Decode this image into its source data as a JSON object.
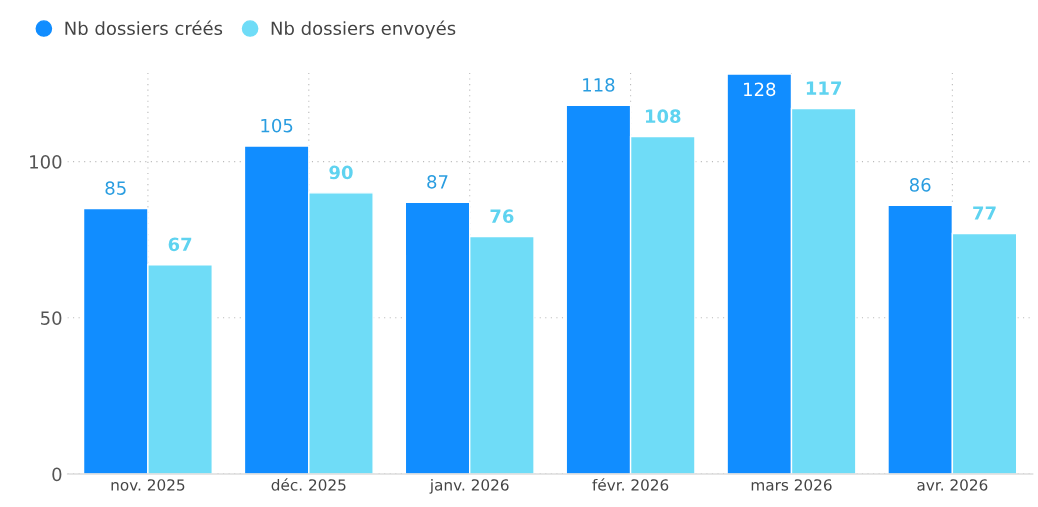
{
  "chart_data": {
    "type": "bar",
    "categories": [
      "nov. 2025",
      "déc. 2025",
      "janv. 2026",
      "févr. 2026",
      "mars 2026",
      "avr. 2026"
    ],
    "series": [
      {
        "name": "Nb dossiers créés",
        "color": "#118dff",
        "values": [
          85,
          105,
          87,
          118,
          128,
          86
        ]
      },
      {
        "name": "Nb dossiers envoyés",
        "color": "#6fdcf7",
        "values": [
          67,
          90,
          76,
          108,
          117,
          77
        ]
      }
    ],
    "ylim": [
      0,
      129
    ],
    "yticks": [
      0,
      50,
      100
    ],
    "grid": true,
    "legend": "top left",
    "data_labels": true
  }
}
